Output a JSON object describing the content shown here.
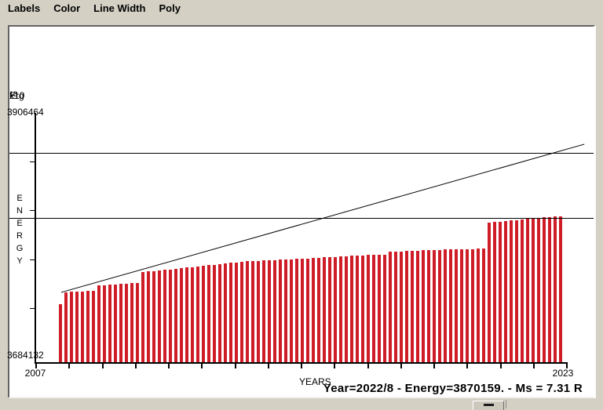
{
  "menubar": {
    "items": [
      {
        "label": "Labels"
      },
      {
        "label": "Color"
      },
      {
        "label": "Line Width"
      },
      {
        "label": "Poly"
      }
    ]
  },
  "status_line": "Year=2022/8 - Energy=3870159. - Ms = 7.31 R",
  "colors": {
    "background": "#d4d0c4",
    "plot_background": "#ffffff",
    "bar": "#cf1d28",
    "axis": "#000000"
  },
  "chart_data": {
    "type": "bar",
    "title": "",
    "xlabel": "YEARS",
    "ylabel": "ENERGY",
    "y_axis_title": {
      "prefix": "x10",
      "exponent": "18",
      "unit": "Erg"
    },
    "y_max_label": "3906464",
    "y_min_label": "3684132",
    "ylim": [
      3684132,
      3906464
    ],
    "xlim": [
      2007,
      2023
    ],
    "x_tick_years": [
      2007,
      2008,
      2009,
      2010,
      2011,
      2012,
      2013,
      2014,
      2015,
      2016,
      2017,
      2018,
      2019,
      2020,
      2021,
      2022,
      2023
    ],
    "x_tick_labels_shown": {
      "first": "2007",
      "last": "2023"
    },
    "y_tick_count_intervals": 5,
    "grid": false,
    "legend": "none",
    "bars": {
      "description": "cumulative seismic energy release, one bar per ~2 months",
      "start_year": 2007.76,
      "step_years": 0.1657,
      "values": [
        3732000,
        3742800,
        3743500,
        3743500,
        3743500,
        3744200,
        3744200,
        3749200,
        3749200,
        3749900,
        3749900,
        3750600,
        3750600,
        3751300,
        3751300,
        3761300,
        3762100,
        3762100,
        3762800,
        3763500,
        3763500,
        3764200,
        3764900,
        3765600,
        3765600,
        3766300,
        3767100,
        3767800,
        3767800,
        3768500,
        3769200,
        3769900,
        3769900,
        3770600,
        3771400,
        3771400,
        3771400,
        3772100,
        3772100,
        3772100,
        3772800,
        3772800,
        3772800,
        3773500,
        3773500,
        3773500,
        3774200,
        3774200,
        3774900,
        3774900,
        3774900,
        3775600,
        3775600,
        3776400,
        3776400,
        3776400,
        3777100,
        3777100,
        3777100,
        3777100,
        3779900,
        3779900,
        3779900,
        3780600,
        3780600,
        3780600,
        3781400,
        3781400,
        3781400,
        3781400,
        3782100,
        3782100,
        3782100,
        3782100,
        3782100,
        3782100,
        3782800,
        3782800,
        3806400,
        3807100,
        3807100,
        3807800,
        3808500,
        3808500,
        3809200,
        3809950,
        3810700,
        3810700,
        3811400,
        3811400,
        3812100,
        3812100
      ]
    },
    "trend_line": {
      "x1_year": 2007.78,
      "y1_value": 3742800,
      "x2_year": 2023.55,
      "y2_value": 3877900
    },
    "reference_lines": [
      3870159,
      3810700
    ],
    "annotation": "Year=2022/8 - Energy=3870159. - Ms = 7.31 R"
  }
}
